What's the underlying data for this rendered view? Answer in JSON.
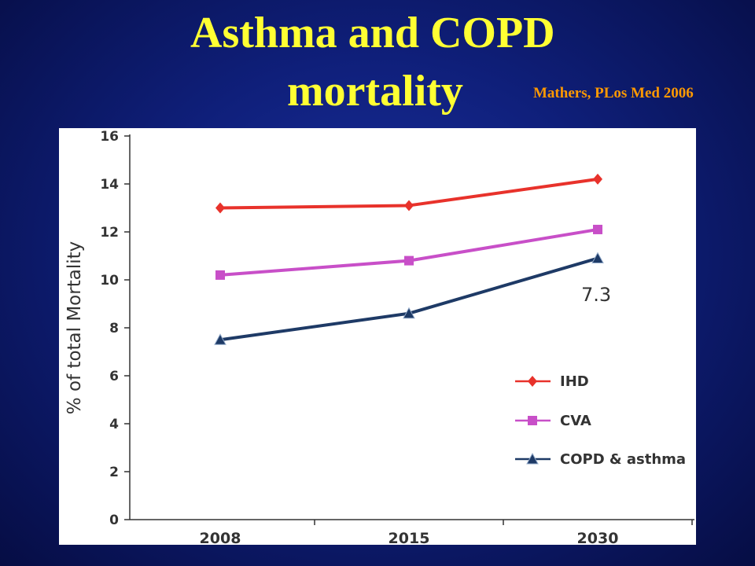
{
  "slide": {
    "title_line1": "Asthma and COPD",
    "title_line2": "mortality",
    "citation": "Mathers, PLos Med 2006"
  },
  "chart_data": {
    "type": "line",
    "categories": [
      "2008",
      "2015",
      "2030"
    ],
    "ylabel": "% of total Mortality",
    "xlabel": "",
    "ylim": [
      0,
      16
    ],
    "yticks": [
      0,
      2,
      4,
      6,
      8,
      10,
      12,
      14,
      16
    ],
    "grid": false,
    "legend_position": "lower-right",
    "series": [
      {
        "name": "IHD",
        "values": [
          13.0,
          13.1,
          14.2
        ],
        "color": "#e8322b",
        "marker": "diamond"
      },
      {
        "name": "CVA",
        "values": [
          10.2,
          10.8,
          12.1
        ],
        "color": "#c84fc8",
        "marker": "square"
      },
      {
        "name": "COPD & asthma",
        "values": [
          7.5,
          8.6,
          10.9
        ],
        "color": "#1e3a66",
        "marker": "triangle"
      }
    ],
    "annotations": [
      {
        "text": "7.3",
        "near_series": "COPD & asthma",
        "near_category": "2030"
      }
    ]
  }
}
